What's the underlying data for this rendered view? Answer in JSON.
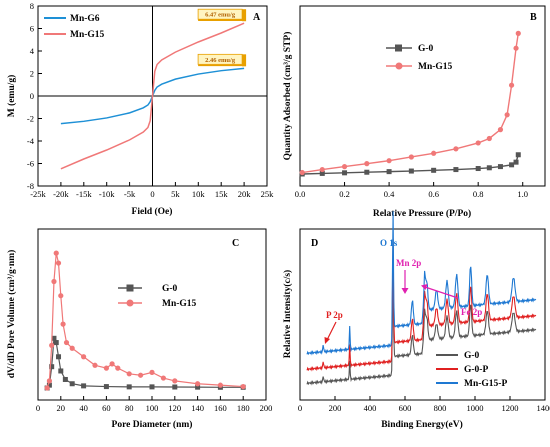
{
  "chart_data": [
    {
      "panel": "A",
      "type": "line",
      "xlabel": "Field (Oe)",
      "ylabel": "M (emu/g)",
      "xlim": [
        -25000,
        25000
      ],
      "ylim": [
        -8,
        8
      ],
      "xticks": [
        -25000,
        -20000,
        -15000,
        -10000,
        -5000,
        0,
        5000,
        10000,
        15000,
        20000,
        25000
      ],
      "xtick_labels": [
        "-25k",
        "-20k",
        "-15k",
        "-10k",
        "-5k",
        "0",
        "5k",
        "10k",
        "15k",
        "20k",
        "25k"
      ],
      "yticks": [
        -8,
        -6,
        -4,
        -2,
        0,
        2,
        4,
        6,
        8
      ],
      "legend_position": "top-left",
      "series": [
        {
          "name": "Mn-G6",
          "color": "#1e90d6",
          "x": [
            -20000,
            -15000,
            -10000,
            -5000,
            -2000,
            -1000,
            -500,
            0,
            500,
            1000,
            2000,
            5000,
            10000,
            15000,
            20000
          ],
          "y": [
            -2.46,
            -2.25,
            -1.95,
            -1.5,
            -1.05,
            -0.8,
            -0.5,
            0,
            0.5,
            0.8,
            1.05,
            1.5,
            1.95,
            2.25,
            2.46
          ]
        },
        {
          "name": "Mn-G15",
          "color": "#f07878",
          "x": [
            -20000,
            -15000,
            -10000,
            -5000,
            -2000,
            -1000,
            -500,
            0,
            500,
            1000,
            2000,
            5000,
            10000,
            15000,
            20000
          ],
          "y": [
            -6.47,
            -5.6,
            -4.8,
            -3.9,
            -3.2,
            -2.8,
            -2.2,
            0,
            2.2,
            2.8,
            3.2,
            3.9,
            4.8,
            5.6,
            6.47
          ]
        }
      ],
      "annotations": [
        {
          "text": "6.47 emu/g",
          "x": 20000,
          "y": 6.47
        },
        {
          "text": "2.46 emu/g",
          "x": 20000,
          "y": 2.46
        }
      ]
    },
    {
      "panel": "B",
      "type": "line",
      "xlabel": "Relative Pressure (P/Po)",
      "ylabel": "Quantity Adsorbed (cm³/g STP)",
      "xlim": [
        0.0,
        1.1
      ],
      "xticks": [
        0.0,
        0.2,
        0.4,
        0.6,
        0.8,
        1.0
      ],
      "xtick_labels": [
        "0.0",
        "0.2",
        "0.4",
        "0.6",
        "0.8",
        "1.0"
      ],
      "y_scale_hidden": true,
      "legend_position": "top-left",
      "series": [
        {
          "name": "G-0",
          "color": "#555555",
          "marker": "square",
          "x": [
            0.01,
            0.1,
            0.2,
            0.3,
            0.4,
            0.5,
            0.6,
            0.7,
            0.8,
            0.85,
            0.9,
            0.95,
            0.97,
            0.98
          ],
          "y": [
            0.0,
            0.4,
            0.8,
            1.2,
            1.6,
            2.0,
            2.5,
            3.0,
            3.7,
            4.2,
            5.0,
            6.2,
            8.0,
            13.0
          ]
        },
        {
          "name": "Mn-G15",
          "color": "#f07878",
          "marker": "circle",
          "x": [
            0.01,
            0.1,
            0.2,
            0.3,
            0.4,
            0.5,
            0.6,
            0.7,
            0.8,
            0.85,
            0.9,
            0.93,
            0.95,
            0.97,
            0.98
          ],
          "y": [
            1.0,
            3.0,
            5.0,
            7.0,
            9.0,
            11.5,
            14.0,
            17.0,
            21.0,
            24.0,
            30.0,
            40.0,
            60.0,
            85.0,
            95.0
          ]
        }
      ]
    },
    {
      "panel": "C",
      "type": "line",
      "xlabel": "Pore Diameter (nm)",
      "ylabel": "dV/dD Pore Volume (cm³/g·nm)",
      "xlim": [
        0,
        200
      ],
      "xticks": [
        0,
        20,
        40,
        60,
        80,
        100,
        120,
        140,
        160,
        180,
        200
      ],
      "xtick_labels": [
        "0",
        "20",
        "40",
        "60",
        "80",
        "100",
        "120",
        "140",
        "160",
        "180",
        "200"
      ],
      "y_scale_hidden": true,
      "legend_position": "center-right",
      "series": [
        {
          "name": "G-0",
          "color": "#555555",
          "marker": "square",
          "x": [
            8,
            10,
            12,
            14,
            16,
            18,
            20,
            24,
            30,
            40,
            60,
            80,
            100,
            120,
            140,
            160,
            180
          ],
          "y": [
            0.0,
            2,
            15,
            35,
            32,
            22,
            12,
            6,
            3,
            1.5,
            1,
            0.8,
            0.8,
            0.7,
            0.6,
            0.5,
            0.5
          ]
        },
        {
          "name": "Mn-G15",
          "color": "#f07878",
          "marker": "circle",
          "x": [
            8,
            10,
            12,
            14,
            16,
            18,
            20,
            22,
            25,
            30,
            40,
            50,
            60,
            65,
            70,
            80,
            90,
            100,
            110,
            120,
            140,
            160,
            180
          ],
          "y": [
            0.0,
            5,
            30,
            75,
            95,
            88,
            65,
            45,
            32,
            28,
            22,
            16,
            14,
            17,
            14,
            10,
            9,
            11,
            7,
            5,
            3,
            2,
            1
          ]
        }
      ]
    },
    {
      "panel": "D",
      "type": "line",
      "xlabel": "Binding Energy(eV)",
      "ylabel": "Relative Intensity(c/s)",
      "xlim": [
        0,
        1400
      ],
      "xticks": [
        0,
        200,
        400,
        600,
        800,
        1000,
        1200,
        1400
      ],
      "xtick_labels": [
        "0",
        "200",
        "400",
        "600",
        "800",
        "1000",
        "1200",
        "1400"
      ],
      "y_scale_hidden": true,
      "legend_position": "bottom-right",
      "series": [
        {
          "name": "G-0",
          "color": "#555555"
        },
        {
          "name": "G-0-P",
          "color": "#e02020"
        },
        {
          "name": "Mn-G15-P",
          "color": "#1e78d2"
        }
      ],
      "peak_labels": [
        {
          "text": "P 2p",
          "x": 133
        },
        {
          "text": "O 1s",
          "x": 531
        },
        {
          "text": "Mn 2p",
          "x": 642
        },
        {
          "text": "Fe 2p",
          "x": 711
        }
      ]
    }
  ]
}
